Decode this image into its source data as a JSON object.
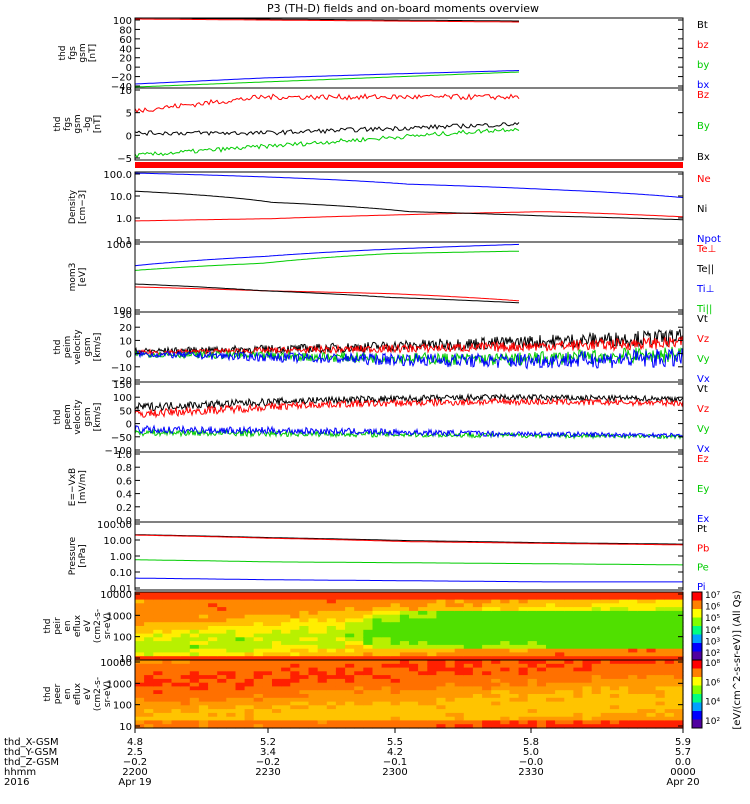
{
  "title": "P3 (TH-D) fields and on-board moments overview",
  "panels": [
    {
      "id": "fgs",
      "ylabel": [
        "thd",
        "fgs",
        "gsm",
        "[nT]"
      ],
      "ticks": [
        "100",
        "80",
        "60",
        "40",
        "20",
        "0",
        "−20",
        "−40"
      ],
      "legend": [
        {
          "t": "Bt",
          "c": "#000000"
        },
        {
          "t": "bz",
          "c": "#ff0000"
        },
        {
          "t": "by",
          "c": "#00cc00"
        },
        {
          "t": "bx",
          "c": "#0000ff"
        }
      ]
    },
    {
      "id": "fgs_dc",
      "ylabel": [
        "thd",
        "fgs",
        "gsm",
        "-bg",
        "[nT]"
      ],
      "ticks": [
        "10",
        "5",
        "0",
        "−5"
      ],
      "legend": [
        {
          "t": "Bz",
          "c": "#ff0000"
        },
        {
          "t": "By",
          "c": "#00cc00"
        },
        {
          "t": "Bx",
          "c": "#000000"
        }
      ]
    },
    {
      "id": "density",
      "ylabel": [
        "Density",
        "[cm−3]"
      ],
      "ticks": [
        "100.0",
        "10.0",
        "1.0",
        "0.1"
      ],
      "legend": [
        {
          "t": "Ne",
          "c": "#ff0000"
        },
        {
          "t": "Ni",
          "c": "#000000"
        },
        {
          "t": "Npot",
          "c": "#0000ff"
        }
      ]
    },
    {
      "id": "temp",
      "ylabel": [
        "mom3",
        "[eV]"
      ],
      "ticks": [
        "1000",
        "100"
      ],
      "legend": [
        {
          "t": "Te⊥",
          "c": "#ff0000"
        },
        {
          "t": "Te||",
          "c": "#000000"
        },
        {
          "t": "Ti⊥",
          "c": "#0000ff"
        },
        {
          "t": "Ti||",
          "c": "#00cc00"
        }
      ]
    },
    {
      "id": "vi",
      "ylabel": [
        "thd",
        "peim",
        "velocity",
        "gsm",
        "[km/s]"
      ],
      "ticks": [
        "30",
        "20",
        "10",
        "0",
        "−10",
        "−20"
      ],
      "legend": [
        {
          "t": "Vt",
          "c": "#000000"
        },
        {
          "t": "Vz",
          "c": "#ff0000"
        },
        {
          "t": "Vy",
          "c": "#00cc00"
        },
        {
          "t": "Vx",
          "c": "#0000ff"
        }
      ]
    },
    {
      "id": "ve",
      "ylabel": [
        "thd",
        "peem",
        "velocity",
        "gsm",
        "[km/s]"
      ],
      "ticks": [
        "150",
        "100",
        "50",
        "0",
        "−50",
        "−100"
      ],
      "legend": [
        {
          "t": "Vt",
          "c": "#000000"
        },
        {
          "t": "Vz",
          "c": "#ff0000"
        },
        {
          "t": "Vy",
          "c": "#00cc00"
        },
        {
          "t": "Vx",
          "c": "#0000ff"
        }
      ]
    },
    {
      "id": "efield",
      "ylabel": [
        "E=−VxB",
        "[mV/m]"
      ],
      "ticks": [
        "1.0",
        "0.8",
        "0.6",
        "0.4",
        "0.2",
        "0.0"
      ],
      "legend": [
        {
          "t": "Ez",
          "c": "#ff0000"
        },
        {
          "t": "Ey",
          "c": "#00cc00"
        },
        {
          "t": "Ex",
          "c": "#0000ff"
        }
      ]
    },
    {
      "id": "pressure",
      "ylabel": [
        "Pressure",
        "[nPa]"
      ],
      "ticks": [
        "100.00",
        "10.00",
        "1.00",
        "0.10",
        "0.01"
      ],
      "legend": [
        {
          "t": "Pt",
          "c": "#000000"
        },
        {
          "t": "Pb",
          "c": "#ff0000"
        },
        {
          "t": "Pe",
          "c": "#00cc00"
        },
        {
          "t": "Pi",
          "c": "#0000ff"
        }
      ]
    },
    {
      "id": "ion_spec",
      "ylabel": [
        "thd",
        "peir",
        "en",
        "eflux",
        "eV",
        "(cm2-s-",
        "sr-eV)"
      ],
      "ticks": [
        "10000",
        "1000",
        "100",
        "10"
      ],
      "legend": []
    },
    {
      "id": "ele_spec",
      "ylabel": [
        "thd",
        "peer",
        "en",
        "eflux",
        "eV",
        "(cm2-s-",
        "sr-eV)"
      ],
      "ticks": [
        "10000",
        "1000",
        "100",
        "10"
      ],
      "legend": []
    }
  ],
  "colorbar": {
    "label": "[eV/(cm^2-s-sr-eV)] (All Qs)",
    "top_ticks": [
      "10⁷",
      "10⁶",
      "10⁵",
      "10⁴",
      "10³",
      "10²"
    ],
    "bottom_ticks": [
      "10⁸",
      "10⁶",
      "10⁴",
      "10²"
    ]
  },
  "xaxis": {
    "rows": [
      {
        "label": "thd_X-GSM",
        "values": [
          "4.8",
          "5.2",
          "5.5",
          "5.8",
          "5.9"
        ]
      },
      {
        "label": "thd_Y-GSM",
        "values": [
          "2.5",
          "3.4",
          "4.2",
          "5.0",
          "5.7"
        ]
      },
      {
        "label": "thd_Z-GSM",
        "values": [
          "−0.2",
          "−0.2",
          "−0.1",
          "−0.0",
          "0.0"
        ]
      },
      {
        "label": "hhmm",
        "values": [
          "2200",
          "2230",
          "2300",
          "2330",
          "0000"
        ]
      },
      {
        "label": "2016",
        "values": [
          "Apr 19",
          "",
          "",
          "",
          "Apr 20"
        ]
      }
    ]
  },
  "chart_data": {
    "type": "line",
    "title": "P3 (TH-D) fields and on-board moments overview",
    "x_time": [
      "2016-04-19 22:00",
      "2016-04-19 22:30",
      "2016-04-19 23:00",
      "2016-04-19 23:30",
      "2016-04-20 00:00"
    ],
    "panels": [
      {
        "name": "fgs gsm [nT]",
        "ylim": [
          -40,
          100
        ],
        "series": [
          {
            "name": "Bt",
            "values": [
              100,
              98,
              96,
              94
            ]
          },
          {
            "name": "bz",
            "values": [
              98,
              96,
              94,
              92
            ]
          },
          {
            "name": "by",
            "values": [
              -38,
              -28,
              -18,
              -8
            ]
          },
          {
            "name": "bx",
            "values": [
              -32,
              -20,
              -12,
              -5
            ]
          }
        ]
      },
      {
        "name": "fgs gsm -bg [nT]",
        "ylim": [
          -6,
          10
        ],
        "series": [
          {
            "name": "Bz",
            "values": [
              5,
              8,
              8,
              8
            ]
          },
          {
            "name": "By",
            "values": [
              -5,
              -3,
              -1,
              1
            ]
          },
          {
            "name": "Bx",
            "values": [
              0,
              0,
              1,
              2
            ]
          }
        ]
      },
      {
        "name": "Density [cm-3]",
        "ylim": [
          0.1,
          100
        ],
        "log": true,
        "series": [
          {
            "name": "Ne",
            "values": [
              0.8,
              1.0,
              1.5,
              2.0,
              1.2
            ]
          },
          {
            "name": "Ni",
            "values": [
              15,
              5,
              2,
              1.3,
              0.9
            ]
          },
          {
            "name": "Npot",
            "values": [
              90,
              60,
              30,
              18,
              8
            ]
          }
        ]
      },
      {
        "name": "mom3 [eV]",
        "ylim": [
          30,
          6000
        ],
        "log": true,
        "series": [
          {
            "name": "Te⊥",
            "values": [
              200,
              150,
              120,
              70
            ]
          },
          {
            "name": "Te||",
            "values": [
              250,
              150,
              90,
              60
            ]
          },
          {
            "name": "Ti⊥",
            "values": [
              1000,
              2000,
              3500,
              5000
            ]
          },
          {
            "name": "Ti||",
            "values": [
              700,
              1200,
              2500,
              3000
            ]
          }
        ]
      },
      {
        "name": "peim velocity gsm [km/s]",
        "ylim": [
          -20,
          30
        ],
        "series": [
          {
            "name": "Vt",
            "values": [
              2,
              4,
              8,
              12
            ]
          },
          {
            "name": "Vz",
            "values": [
              1,
              3,
              5,
              8
            ]
          },
          {
            "name": "Vy",
            "values": [
              0,
              -2,
              -4,
              0
            ]
          },
          {
            "name": "Vx",
            "values": [
              0,
              -3,
              -5,
              -3
            ]
          }
        ]
      },
      {
        "name": "peem velocity gsm [km/s]",
        "ylim": [
          -100,
          150
        ],
        "series": [
          {
            "name": "Vt",
            "values": [
              60,
              85,
              95,
              90
            ]
          },
          {
            "name": "Vz",
            "values": [
              35,
              70,
              80,
              75
            ]
          },
          {
            "name": "Vy",
            "values": [
              -30,
              -35,
              -40,
              -45
            ]
          },
          {
            "name": "Vx",
            "values": [
              -20,
              -25,
              -35,
              -40
            ]
          }
        ]
      },
      {
        "name": "E=-VxB [mV/m]",
        "ylim": [
          0,
          1
        ],
        "series": []
      },
      {
        "name": "Pressure [nPa]",
        "ylim": [
          0.01,
          100
        ],
        "log": true,
        "series": [
          {
            "name": "Pt",
            "values": [
              18,
              12,
              8,
              6,
              5
            ]
          },
          {
            "name": "Pb",
            "values": [
              17,
              11,
              7,
              5.5,
              4.5
            ]
          },
          {
            "name": "Pe",
            "values": [
              0.6,
              0.45,
              0.4,
              0.35,
              0.3
            ]
          },
          {
            "name": "Pi",
            "values": [
              0.05,
              0.04,
              0.035,
              0.03,
              0.03
            ]
          }
        ]
      }
    ]
  }
}
